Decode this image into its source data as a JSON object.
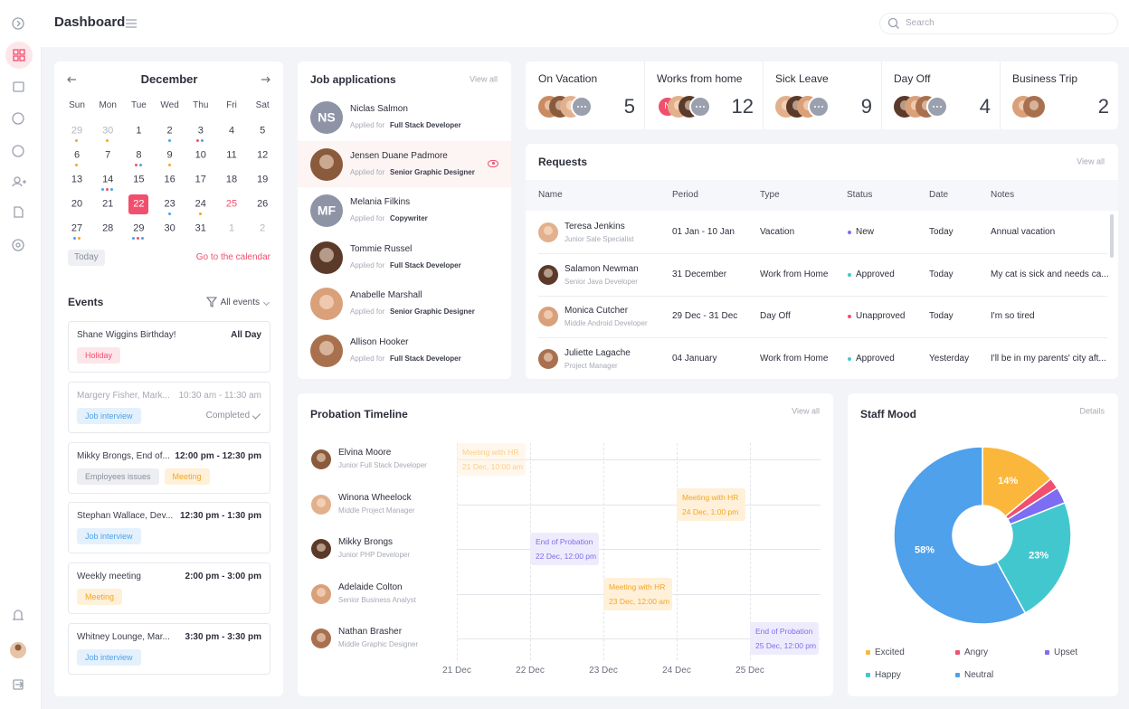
{
  "header": {
    "title": "Dashboard",
    "search_placeholder": "Search"
  },
  "calendar": {
    "month": "December",
    "weekdays": [
      "Sun",
      "Mon",
      "Tue",
      "Wed",
      "Thu",
      "Fri",
      "Sat"
    ],
    "weeks": [
      [
        {
          "day": 29,
          "muted": true,
          "dots": [
            "#f5a623"
          ]
        },
        {
          "day": 30,
          "muted": true,
          "dots": [
            "#f5a623"
          ]
        },
        {
          "day": 1
        },
        {
          "day": 2,
          "dots": [
            "#4ea1ea"
          ]
        },
        {
          "day": 3,
          "dots": [
            "#f0506e",
            "#4ea1ea"
          ]
        },
        {
          "day": 4
        },
        {
          "day": 5
        }
      ],
      [
        {
          "day": 6,
          "dots": [
            "#f5a623"
          ]
        },
        {
          "day": 7
        },
        {
          "day": 8,
          "dots": [
            "#f0506e",
            "#4ea1ea"
          ]
        },
        {
          "day": 9,
          "dots": [
            "#f5a623"
          ]
        },
        {
          "day": 10
        },
        {
          "day": 11
        },
        {
          "day": 12
        }
      ],
      [
        {
          "day": 13
        },
        {
          "day": 14,
          "dots": [
            "#4ea1ea",
            "#f0506e",
            "#4ea1ea"
          ]
        },
        {
          "day": 15
        },
        {
          "day": 16
        },
        {
          "day": 17
        },
        {
          "day": 18
        },
        {
          "day": 19
        }
      ],
      [
        {
          "day": 20
        },
        {
          "day": 21
        },
        {
          "day": 22,
          "selected": true
        },
        {
          "day": 23,
          "dots": [
            "#4ea1ea"
          ]
        },
        {
          "day": 24,
          "dots": [
            "#f5a623"
          ]
        },
        {
          "day": 25,
          "holiday": true
        },
        {
          "day": 26
        }
      ],
      [
        {
          "day": 27,
          "dots": [
            "#4ea1ea",
            "#f5a623"
          ]
        },
        {
          "day": 28
        },
        {
          "day": 29,
          "dots": [
            "#4ea1ea",
            "#f0506e",
            "#4ea1ea"
          ]
        },
        {
          "day": 30
        },
        {
          "day": 31
        },
        {
          "day": 1,
          "muted": true
        },
        {
          "day": 2,
          "muted": true
        }
      ]
    ],
    "today": "Today",
    "link": "Go to the calendar"
  },
  "events": {
    "title": "Events",
    "filter": "All events",
    "items": [
      {
        "name": "Shane Wiggins Birthday!",
        "time": "All Day",
        "tags": [
          {
            "text": "Holiday",
            "style": "red"
          }
        ]
      },
      {
        "name": "Margery Fisher, Mark...",
        "time": "10:30 am - 11:30 am",
        "tags": [
          {
            "text": "Job interview",
            "style": "blue"
          }
        ],
        "status": "Completed",
        "muted": true
      },
      {
        "name": "Mikky Brongs, End of...",
        "time": "12:00 pm - 12:30 pm",
        "tags": [
          {
            "text": "Employees issues",
            "style": "grey"
          },
          {
            "text": "Meeting",
            "style": "orange"
          }
        ]
      },
      {
        "name": "Stephan Wallace, Dev...",
        "time": "12:30 pm - 1:30 pm",
        "tags": [
          {
            "text": "Job interview",
            "style": "blue"
          }
        ]
      },
      {
        "name": "Weekly meeting",
        "time": "2:00 pm - 3:00 pm",
        "tags": [
          {
            "text": "Meeting",
            "style": "orange"
          }
        ]
      },
      {
        "name": "Whitney Lounge, Mar...",
        "time": "3:30 pm - 3:30 pm",
        "tags": [
          {
            "text": "Job interview",
            "style": "blue"
          }
        ]
      }
    ]
  },
  "job_applications": {
    "title": "Job applications",
    "link": "View all",
    "items": [
      {
        "name": "Niclas Salmon",
        "initials": "NS",
        "applied": "Applied for",
        "role": "Full Stack Developer"
      },
      {
        "name": "Jensen Duane Padmore",
        "applied": "Applied for",
        "role": "Senior Graphic Designer",
        "highlighted": true
      },
      {
        "name": "Melania Filkins",
        "initials": "MF",
        "applied": "Applied for",
        "role": "Copywriter"
      },
      {
        "name": "Tommie Russel",
        "applied": "Applied for",
        "role": "Full Stack Developer"
      },
      {
        "name": "Anabelle Marshall",
        "applied": "Applied for",
        "role": "Senior Graphic Designer"
      },
      {
        "name": "Allison Hooker",
        "applied": "Applied for",
        "role": "Full Stack Developer"
      }
    ]
  },
  "stats": [
    {
      "label": "On Vacation",
      "count": 5
    },
    {
      "label": "Works from home",
      "count": 12,
      "first_initial": "N"
    },
    {
      "label": "Sick Leave",
      "count": 9
    },
    {
      "label": "Day Off",
      "count": 4
    },
    {
      "label": "Business Trip",
      "count": 2
    }
  ],
  "requests": {
    "title": "Requests",
    "link": "View all",
    "columns": [
      "Name",
      "Period",
      "Type",
      "Status",
      "Date",
      "Notes"
    ],
    "rows": [
      {
        "name": "Teresa Jenkins",
        "role": "Junior Sale Specialist",
        "period": "01 Jan - 10 Jan",
        "type": "Vacation",
        "status": "New",
        "status_color": "#7c6df2",
        "date": "Today",
        "notes": "Annual vacation"
      },
      {
        "name": "Salamon Newman",
        "role": "Senior Java Developer",
        "period": "31 December",
        "type": "Work from Home",
        "status": "Approved",
        "status_color": "#43c7cf",
        "date": "Today",
        "notes": "My cat is sick and needs ca..."
      },
      {
        "name": "Monica Cutcher",
        "role": "Middle Android Developer",
        "period": "29 Dec - 31 Dec",
        "type": "Day Off",
        "status": "Unapproved",
        "status_color": "#f0506e",
        "date": "Today",
        "notes": "I'm so tired"
      },
      {
        "name": "Juliette Lagache",
        "role": "Project Manager",
        "period": "04 January",
        "type": "Work from Home",
        "status": "Approved",
        "status_color": "#43c7cf",
        "date": "Yesterday",
        "notes": "I'll be in my parents' city aft..."
      }
    ]
  },
  "probation": {
    "title": "Probation Timeline",
    "link": "View all",
    "days": [
      "21 Dec",
      "22 Dec",
      "23 Dec",
      "24 Dec",
      "25 Dec"
    ],
    "people": [
      {
        "name": "Elvina Moore",
        "role": "Junior Full Stack Developer",
        "event": {
          "title": "Meeting with HR",
          "date": "21 Dec, 10:00 am",
          "style": "orange",
          "muted": true
        }
      },
      {
        "name": "Winona Wheelock",
        "role": "Middle Project Manager",
        "event": {
          "title": "Meeting with HR",
          "date": "24 Dec, 1:00 pm",
          "style": "orange"
        }
      },
      {
        "name": "Mikky Brongs",
        "role": "Junior PHP Developer",
        "event": {
          "title": "End of Probation",
          "date": "22 Dec, 12:00 pm",
          "style": "purple"
        }
      },
      {
        "name": "Adelaide Colton",
        "role": "Senior Business Analyst",
        "event": {
          "title": "Meeting with HR",
          "date": "23 Dec, 12:00 am",
          "style": "orange"
        }
      },
      {
        "name": "Nathan Brasher",
        "role": "Middle Graphic Designer",
        "event": {
          "title": "End of Probation",
          "date": "25 Dec, 12:00 pm",
          "style": "purple"
        }
      }
    ]
  },
  "chart_data": {
    "type": "pie",
    "title": "Staff Mood",
    "link": "Details",
    "categories": [
      "Excited",
      "Angry",
      "Upset",
      "Happy",
      "Neutral"
    ],
    "values": [
      14,
      2,
      3,
      23,
      58
    ],
    "value_labels": [
      "14%",
      null,
      null,
      "23%",
      "58%"
    ],
    "colors": [
      "#fbb73c",
      "#f0506e",
      "#7c6df2",
      "#43c7cf",
      "#4ea1ea"
    ],
    "donut": true
  }
}
